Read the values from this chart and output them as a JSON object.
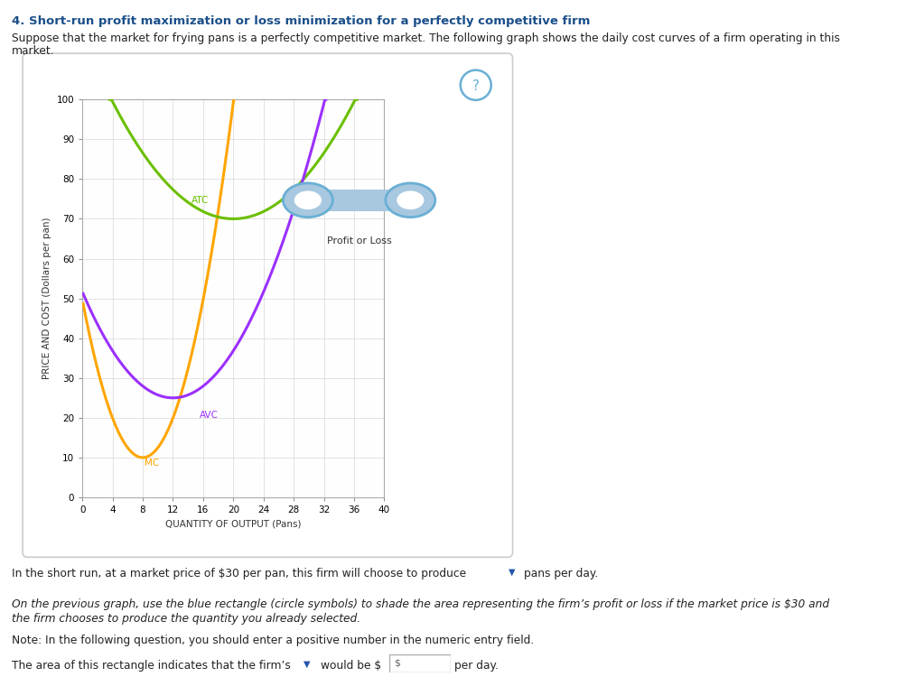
{
  "title": "4. Short-run profit maximization or loss minimization for a perfectly competitive firm",
  "subtitle_line1": "Suppose that the market for frying pans is a perfectly competitive market. The following graph shows the daily cost curves of a firm operating in this",
  "subtitle_line2": "market.",
  "xlabel": "QUANTITY OF OUTPUT (Pans)",
  "ylabel": "PRICE AND COST (Dollars per pan)",
  "xlim": [
    0,
    40
  ],
  "ylim": [
    0,
    100
  ],
  "xticks": [
    0,
    4,
    8,
    12,
    16,
    20,
    24,
    28,
    32,
    36,
    40
  ],
  "yticks": [
    0,
    10,
    20,
    30,
    40,
    50,
    60,
    70,
    80,
    90,
    100
  ],
  "mc_color": "#FFA500",
  "atc_color": "#6BBF00",
  "avc_color": "#9B30FF",
  "legend_label": "Profit or Loss",
  "legend_fill": "#A8C8E0",
  "legend_edge": "#6AAFD4",
  "question_circle_color": "#6AAFD4",
  "background_color": "#FFFFFF",
  "panel_border_color": "#CCCCCC",
  "grid_color": "#DDDDDD",
  "footer1": "In the short run, at a market price of $30 per pan, this firm will choose to produce",
  "footer1b": "pans per day.",
  "footer2a": "On the previous graph, use the blue rectangle (circle symbols) to shade the area representing the firm’s profit or loss if the market price is $30 and",
  "footer2b": "the firm chooses to produce the quantity you already selected.",
  "footer3": "Note: In the following question, you should enter a positive number in the numeric entry field.",
  "footer4a": "The area of this rectangle indicates that the firm’s",
  "footer4b": "would be $",
  "footer4c": "per day.",
  "a_mc": 0.62,
  "mc_min_q": 8,
  "mc_min_v": 10,
  "a_atc": 0.115,
  "atc_min_q": 20,
  "atc_min_v": 70,
  "a_avc": 0.185,
  "avc_min_q": 12,
  "avc_min_v": 25,
  "mc_label_q": 8.2,
  "mc_label_v": 8,
  "atc_label_q": 14.5,
  "atc_label_v": 74,
  "avc_label_q": 15.5,
  "avc_label_v": 20
}
